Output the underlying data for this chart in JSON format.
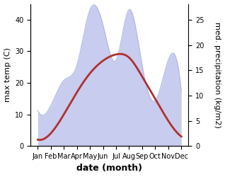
{
  "months": [
    "Jan",
    "Feb",
    "Mar",
    "Apr",
    "May",
    "Jun",
    "Jul",
    "Aug",
    "Sep",
    "Oct",
    "Nov",
    "Dec"
  ],
  "temperature": [
    2,
    4,
    10,
    17,
    23,
    27,
    29,
    28,
    22,
    15,
    8,
    3
  ],
  "precipitation": [
    7,
    8,
    13,
    16,
    27,
    24,
    17,
    27,
    16,
    9,
    17,
    11
  ],
  "temp_color": "#b03030",
  "precip_fill_color": "#c8ccee",
  "precip_edge_color": "#b0b8e8",
  "temp_lw": 2.0,
  "xlabel": "date (month)",
  "ylabel_left": "max temp (C)",
  "ylabel_right": "med. precipitation (kg/m2)",
  "ylim_left": [
    0,
    45
  ],
  "ylim_right": [
    0,
    28.125
  ],
  "yticks_left": [
    0,
    10,
    20,
    30,
    40
  ],
  "yticks_right": [
    0,
    5,
    10,
    15,
    20,
    25
  ],
  "xlabel_fontsize": 9,
  "ylabel_fontsize": 8,
  "tick_fontsize": 7
}
